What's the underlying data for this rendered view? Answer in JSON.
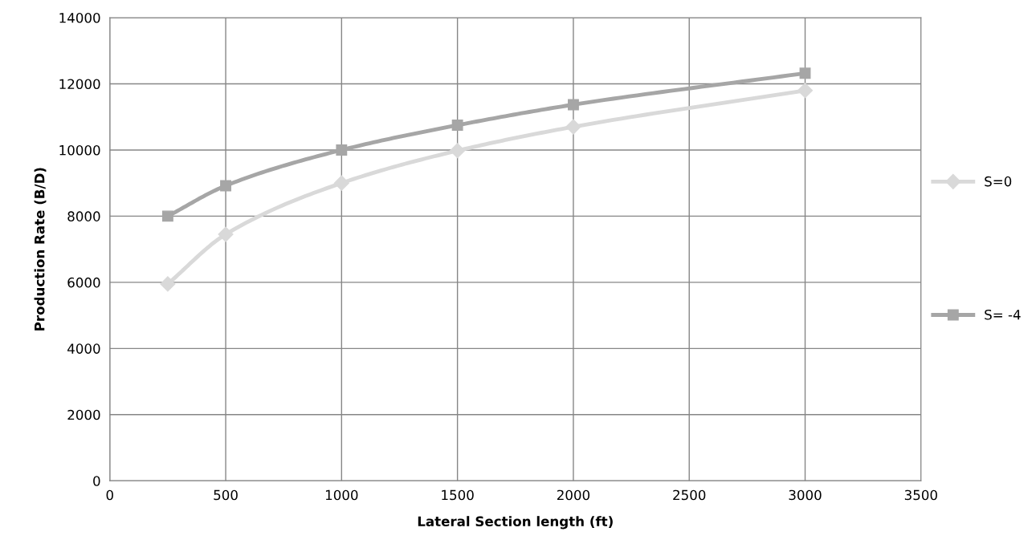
{
  "chart_data": {
    "type": "line",
    "xlabel": "Lateral Section length (ft)",
    "ylabel": "Production Rate (B/D)",
    "x": [
      250,
      500,
      1000,
      1500,
      2000,
      3000
    ],
    "series": [
      {
        "name": "S=0",
        "color": "#d9d9d9",
        "marker": "diamond",
        "values": [
          5950,
          7450,
          9000,
          9980,
          10700,
          11800
        ]
      },
      {
        "name": "S= -4",
        "color": "#a6a6a6",
        "marker": "square",
        "values": [
          8000,
          8920,
          10000,
          10750,
          11370,
          12320
        ]
      }
    ],
    "xlim": [
      0,
      3500
    ],
    "xticks": [
      0,
      500,
      1000,
      1500,
      2000,
      2500,
      3000,
      3500
    ],
    "ylim": [
      0,
      14000
    ],
    "yticks": [
      0,
      2000,
      4000,
      6000,
      8000,
      10000,
      12000,
      14000
    ],
    "grid": true,
    "legend": "right",
    "line_style": "solid"
  }
}
